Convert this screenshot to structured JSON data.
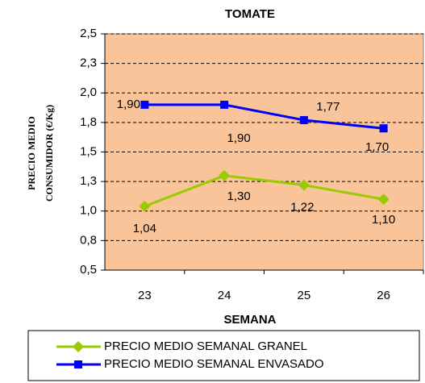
{
  "chart_data": {
    "type": "line",
    "title": "TOMATE",
    "ylabel": [
      "PRECIO MEDIO",
      "CONSUMIDOR  (€/Kg)"
    ],
    "xlabel": "SEMANA",
    "categories": [
      "23",
      "24",
      "25",
      "26"
    ],
    "series": [
      {
        "name": "PRECIO MEDIO SEMANAL GRANEL",
        "color": "#99cc00",
        "marker": "diamond",
        "values": [
          1.04,
          1.3,
          1.22,
          1.1
        ],
        "value_labels": [
          "1,04",
          "1,30",
          "1,22",
          "1,10"
        ]
      },
      {
        "name": "PRECIO MEDIO SEMANAL ENVASADO",
        "color": "#0000ff",
        "marker": "square",
        "values": [
          1.9,
          1.9,
          1.77,
          1.7
        ],
        "value_labels": [
          "1,90",
          "1,90",
          "1,77",
          "1,70"
        ]
      }
    ],
    "ylim": [
      0.5,
      2.5
    ],
    "yticks": [
      {
        "value": 0.5,
        "label": "0,5"
      },
      {
        "value": 0.75,
        "label": "0,8"
      },
      {
        "value": 1.0,
        "label": "1,0"
      },
      {
        "value": 1.25,
        "label": "1,3"
      },
      {
        "value": 1.5,
        "label": "1,5"
      },
      {
        "value": 1.75,
        "label": "1,8"
      },
      {
        "value": 2.0,
        "label": "2,0"
      },
      {
        "value": 2.25,
        "label": "2,3"
      },
      {
        "value": 2.5,
        "label": "2,5"
      }
    ],
    "grid": true,
    "plot_background": "#f9c49a",
    "legend": "bottom"
  }
}
